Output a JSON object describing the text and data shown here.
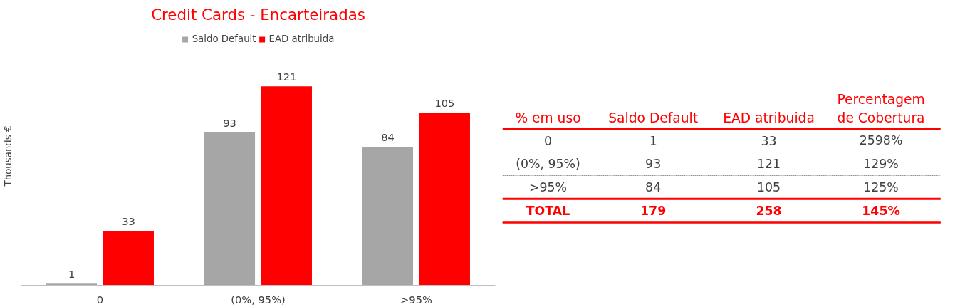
{
  "chart_data": [
    {
      "type": "bar",
      "title": "Credit Cards - Encarteiradas",
      "ylabel": "Thousands €",
      "categories": [
        "0",
        "(0%, 95%)",
        ">95%"
      ],
      "series": [
        {
          "name": "Saldo Default",
          "color": "#a6a6a6",
          "values": [
            1,
            93,
            84
          ]
        },
        {
          "name": "EAD atribuida",
          "color": "#ff0000",
          "values": [
            33,
            121,
            105
          ]
        }
      ],
      "data_labels": true,
      "legend": "top",
      "grid": false
    },
    {
      "type": "other",
      "annotations": [
        "% em uso",
        "Saldo Default",
        "EAD atribuida",
        "Percentagem de Cobertura",
        "0",
        "1",
        "33",
        "2598%",
        "(0%, 95%)",
        "93",
        "121",
        "129%",
        ">95%",
        "84",
        "105",
        "125%",
        "TOTAL",
        "179",
        "258",
        "145%"
      ]
    }
  ]
}
